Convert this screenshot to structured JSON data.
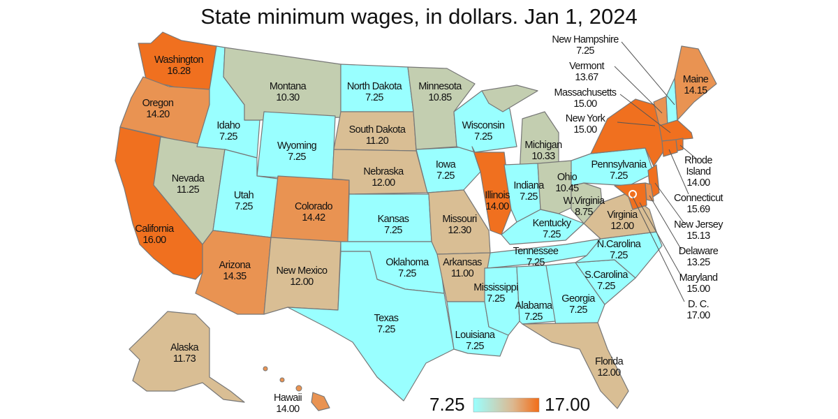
{
  "title": "State minimum wages, in dollars. Jan 1, 2024",
  "legend": {
    "min_label": "7.25",
    "max_label": "17.00",
    "min": 7.25,
    "max": 17.0,
    "colors": [
      "#99ffff",
      "#a6e6d8",
      "#b3d6c0",
      "#c7ccae",
      "#d6c39d",
      "#dfb58a",
      "#e59c60",
      "#eb8540",
      "#f26d18"
    ]
  },
  "colors": {
    "fed": "#99ffff",
    "mid_low": "#c3ceb0",
    "mid": "#d9be94",
    "mid_high": "#e99352",
    "high": "#f0701f",
    "border": "#777777"
  },
  "states": {
    "WA": {
      "name": "Washington",
      "wage": "16.28"
    },
    "OR": {
      "name": "Oregon",
      "wage": "14.20"
    },
    "CA": {
      "name": "California",
      "wage": "16.00"
    },
    "NV": {
      "name": "Nevada",
      "wage": "11.25"
    },
    "ID": {
      "name": "Idaho",
      "wage": "7.25"
    },
    "MT": {
      "name": "Montana",
      "wage": "10.30"
    },
    "WY": {
      "name": "Wyoming",
      "wage": "7.25"
    },
    "UT": {
      "name": "Utah",
      "wage": "7.25"
    },
    "AZ": {
      "name": "Arizona",
      "wage": "14.35"
    },
    "CO": {
      "name": "Colorado",
      "wage": "14.42"
    },
    "NM": {
      "name": "New Mexico",
      "wage": "12.00"
    },
    "ND": {
      "name": "North Dakota",
      "wage": "7.25"
    },
    "SD": {
      "name": "South Dakota",
      "wage": "11.20"
    },
    "NE": {
      "name": "Nebraska",
      "wage": "12.00"
    },
    "KS": {
      "name": "Kansas",
      "wage": "7.25"
    },
    "OK": {
      "name": "Oklahoma",
      "wage": "7.25"
    },
    "TX": {
      "name": "Texas",
      "wage": "7.25"
    },
    "MN": {
      "name": "Minnesota",
      "wage": "10.85"
    },
    "IA": {
      "name": "Iowa",
      "wage": "7.25"
    },
    "MO": {
      "name": "Missouri",
      "wage": "12.30"
    },
    "AR": {
      "name": "Arkansas",
      "wage": "11.00"
    },
    "LA": {
      "name": "Louisiana",
      "wage": "7.25"
    },
    "WI": {
      "name": "Wisconsin",
      "wage": "7.25"
    },
    "IL": {
      "name": "Illinois",
      "wage": "14.00"
    },
    "MI": {
      "name": "Michigan",
      "wage": "10.33"
    },
    "IN": {
      "name": "Indiana",
      "wage": "7.25"
    },
    "OH": {
      "name": "Ohio",
      "wage": "10.45"
    },
    "KY": {
      "name": "Kentucky",
      "wage": "7.25"
    },
    "TN": {
      "name": "Tennessee",
      "wage": "7.25"
    },
    "MS": {
      "name": "Mississippi",
      "wage": "7.25"
    },
    "AL": {
      "name": "Alabama",
      "wage": "7.25"
    },
    "GA": {
      "name": "Georgia",
      "wage": "7.25"
    },
    "FL": {
      "name": "Florida",
      "wage": "12.00"
    },
    "SC": {
      "name": "S.Carolina",
      "wage": "7.25"
    },
    "NC": {
      "name": "N.Carolina",
      "wage": "7.25"
    },
    "VA": {
      "name": "Virginia",
      "wage": "12.00"
    },
    "WV": {
      "name": "W.Virginia",
      "wage": "8.75"
    },
    "PA": {
      "name": "Pennsylvania",
      "wage": "7.25"
    },
    "NY": {
      "name": "New York",
      "wage": "15.00"
    },
    "ME": {
      "name": "Maine",
      "wage": "14.15"
    },
    "NH": {
      "name": "New Hampshire",
      "wage": "7.25"
    },
    "VT": {
      "name": "Vermont",
      "wage": "13.67"
    },
    "MA": {
      "name": "Massachusetts",
      "wage": "15.00"
    },
    "RI": {
      "name": "Rhode",
      "name2": "Island",
      "wage": "14.00"
    },
    "CT": {
      "name": "Connecticut",
      "wage": "15.69"
    },
    "NJ": {
      "name": "New Jersey",
      "wage": "15.13"
    },
    "DE": {
      "name": "Delaware",
      "wage": "13.25"
    },
    "MD": {
      "name": "Maryland",
      "wage": "15.00"
    },
    "DC": {
      "name": "D. C.",
      "wage": "17.00"
    },
    "AK": {
      "name": "Alaska",
      "wage": "11.73"
    },
    "HI": {
      "name": "Hawaii",
      "wage": "14.00"
    }
  }
}
